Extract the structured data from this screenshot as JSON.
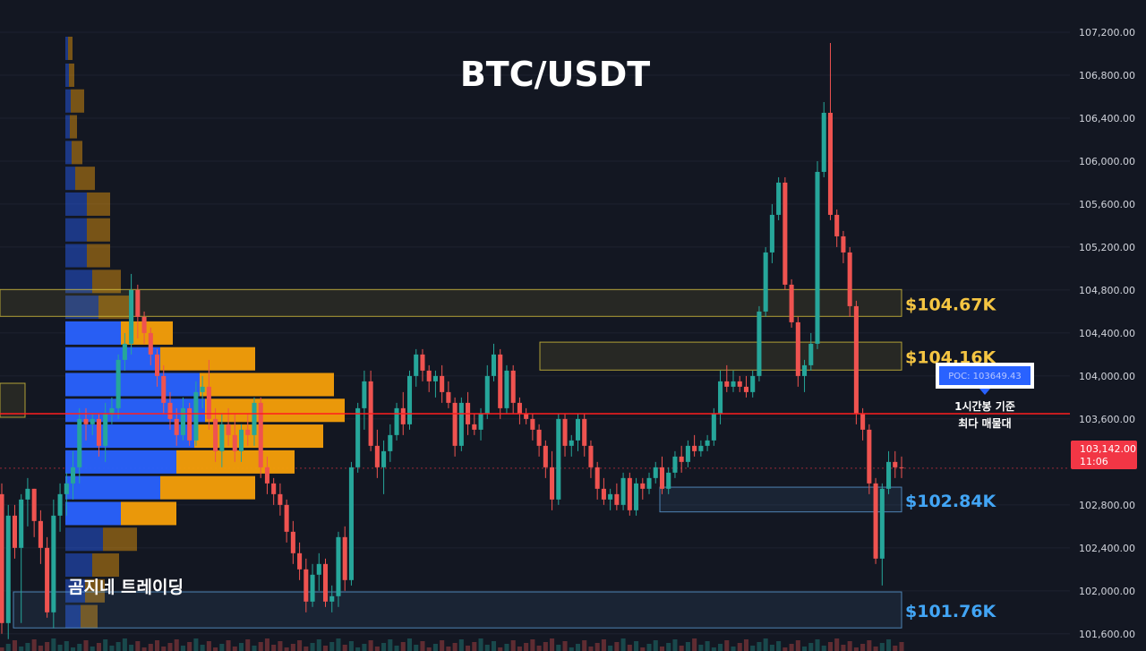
{
  "title": "BTC/USDT",
  "watermark": "곰지네 트레이딩",
  "colors": {
    "background": "#131722",
    "grid": "#1e2230",
    "bull": "#26a69a",
    "bear": "#ef5350",
    "vp_up": "#2962ff",
    "vp_down": "#f59f0a",
    "zone_yellow": "#d7c13b",
    "zone_blue": "#5b9bd5",
    "label_yellow": "#f5c542",
    "label_blue": "#42a5f5",
    "poc_line": "#ff1e1e",
    "price_tag": "#f23645"
  },
  "chart_data": {
    "type": "candlestick",
    "title": "BTC/USDT",
    "y_axis": {
      "ticks": [
        "107,200.00",
        "106,800.00",
        "106,400.00",
        "106,000.00",
        "105,600.00",
        "105,200.00",
        "104,800.00",
        "104,400.00",
        "104,000.00",
        "103,600.00",
        "102,800.00",
        "102,400.00",
        "102,000.00",
        "101,600.00"
      ],
      "range": [
        101440,
        107500
      ]
    },
    "current_price": {
      "value": "103,142.00",
      "countdown": "11:06",
      "price": 103142
    },
    "poc": {
      "label": "POC: 103649.43",
      "price": 103649.43
    },
    "poc_note": [
      "1시간봉 기준",
      "최다 매물대"
    ],
    "zones": [
      {
        "label": "$104.67K",
        "low": 104555,
        "high": 104805,
        "color": "yellow"
      },
      {
        "label": "$104.16K",
        "low": 104055,
        "high": 104315,
        "color": "yellow"
      },
      {
        "label": "$102.84K",
        "low": 102735,
        "high": 102965,
        "color": "blue"
      },
      {
        "label": "$101.76K",
        "low": 101655,
        "high": 101990,
        "color": "blue"
      }
    ],
    "candles": [
      [
        102900,
        103000,
        101600,
        101700
      ],
      [
        101700,
        102800,
        101550,
        102700
      ],
      [
        102700,
        102800,
        102300,
        102400
      ],
      [
        102400,
        102900,
        101700,
        102850
      ],
      [
        102850,
        103050,
        102600,
        102950
      ],
      [
        102950,
        102950,
        102500,
        102650
      ],
      [
        102650,
        102750,
        102250,
        102400
      ],
      [
        102400,
        102500,
        101750,
        101800
      ],
      [
        101800,
        102850,
        101650,
        102700
      ],
      [
        102700,
        103000,
        102550,
        102900
      ],
      [
        102900,
        103100,
        102700,
        103000
      ],
      [
        103000,
        103300,
        102850,
        103150
      ],
      [
        103150,
        103700,
        103000,
        103600
      ],
      [
        103600,
        103700,
        103400,
        103550
      ],
      [
        103550,
        103650,
        103450,
        103600
      ],
      [
        103600,
        103650,
        103250,
        103350
      ],
      [
        103350,
        103750,
        103200,
        103650
      ],
      [
        103650,
        103800,
        103550,
        103700
      ],
      [
        103700,
        104200,
        103600,
        104150
      ],
      [
        104150,
        104400,
        104050,
        104300
      ],
      [
        104300,
        104950,
        104200,
        104800
      ],
      [
        104800,
        104850,
        104350,
        104550
      ],
      [
        104550,
        104600,
        104300,
        104400
      ],
      [
        104400,
        104450,
        104100,
        104200
      ],
      [
        104200,
        104250,
        103900,
        104000
      ],
      [
        104000,
        104100,
        103650,
        103750
      ],
      [
        103750,
        103850,
        103500,
        103600
      ],
      [
        103600,
        103700,
        103350,
        103450
      ],
      [
        103450,
        103800,
        103400,
        103700
      ],
      [
        103700,
        103750,
        103350,
        103400
      ],
      [
        103400,
        103950,
        103350,
        103850
      ],
      [
        103850,
        104000,
        103700,
        103900
      ],
      [
        103900,
        104150,
        103500,
        103600
      ],
      [
        103600,
        103700,
        103200,
        103300
      ],
      [
        103300,
        103650,
        103150,
        103550
      ],
      [
        103550,
        103700,
        103350,
        103450
      ],
      [
        103450,
        103650,
        103200,
        103300
      ],
      [
        103300,
        103550,
        103200,
        103500
      ],
      [
        103500,
        103650,
        103350,
        103450
      ],
      [
        103450,
        103800,
        103350,
        103750
      ],
      [
        103750,
        103800,
        103050,
        103150
      ],
      [
        103150,
        103250,
        102900,
        103000
      ],
      [
        103000,
        103050,
        102800,
        102900
      ],
      [
        102900,
        103000,
        102700,
        102800
      ],
      [
        102800,
        102850,
        102450,
        102550
      ],
      [
        102550,
        102650,
        102250,
        102350
      ],
      [
        102350,
        102450,
        102100,
        102200
      ],
      [
        102200,
        102300,
        101800,
        101900
      ],
      [
        101900,
        102250,
        101850,
        102150
      ],
      [
        102150,
        102350,
        102000,
        102250
      ],
      [
        102250,
        102300,
        101850,
        101900
      ],
      [
        101900,
        102050,
        101800,
        101950
      ],
      [
        101950,
        102550,
        101850,
        102500
      ],
      [
        102500,
        102600,
        102000,
        102100
      ],
      [
        102100,
        103200,
        102050,
        103150
      ],
      [
        103150,
        103750,
        103100,
        103700
      ],
      [
        103700,
        104050,
        103500,
        103950
      ],
      [
        103950,
        104050,
        103300,
        103350
      ],
      [
        103350,
        103500,
        103050,
        103150
      ],
      [
        103150,
        103400,
        102900,
        103300
      ],
      [
        103300,
        103550,
        103200,
        103450
      ],
      [
        103450,
        103750,
        103400,
        103700
      ],
      [
        103700,
        103850,
        103450,
        103550
      ],
      [
        103550,
        104050,
        103500,
        104000
      ],
      [
        104000,
        104250,
        103900,
        104200
      ],
      [
        104200,
        104250,
        103950,
        104050
      ],
      [
        104050,
        104100,
        103850,
        103950
      ],
      [
        103950,
        104050,
        103800,
        104000
      ],
      [
        104000,
        104100,
        103750,
        103850
      ],
      [
        103850,
        103950,
        103700,
        103750
      ],
      [
        103750,
        103800,
        103250,
        103350
      ],
      [
        103350,
        103800,
        103300,
        103750
      ],
      [
        103750,
        103850,
        103450,
        103550
      ],
      [
        103550,
        103650,
        103450,
        103500
      ],
      [
        103500,
        103700,
        103400,
        103650
      ],
      [
        103650,
        104100,
        103600,
        104000
      ],
      [
        104000,
        104300,
        103950,
        104200
      ],
      [
        104200,
        104250,
        103600,
        103700
      ],
      [
        103700,
        104100,
        103650,
        104050
      ],
      [
        104050,
        104100,
        103650,
        103750
      ],
      [
        103750,
        103800,
        103550,
        103650
      ],
      [
        103650,
        103700,
        103550,
        103600
      ],
      [
        103600,
        103650,
        103400,
        103500
      ],
      [
        103500,
        103550,
        103250,
        103350
      ],
      [
        103350,
        103400,
        103050,
        103150
      ],
      [
        103150,
        103300,
        102750,
        102850
      ],
      [
        102850,
        103650,
        102800,
        103600
      ],
      [
        103600,
        103650,
        103250,
        103350
      ],
      [
        103350,
        103450,
        103250,
        103400
      ],
      [
        103400,
        103650,
        103300,
        103600
      ],
      [
        103600,
        103650,
        103250,
        103350
      ],
      [
        103350,
        103400,
        103050,
        103150
      ],
      [
        103150,
        103200,
        102850,
        102950
      ],
      [
        102950,
        103050,
        102800,
        102850
      ],
      [
        102850,
        102950,
        102750,
        102900
      ],
      [
        102900,
        103000,
        102750,
        102800
      ],
      [
        102800,
        103100,
        102750,
        103050
      ],
      [
        103050,
        103100,
        102700,
        102750
      ],
      [
        102750,
        103050,
        102700,
        103000
      ],
      [
        103000,
        103050,
        102850,
        102950
      ],
      [
        102950,
        103100,
        102900,
        103050
      ],
      [
        103050,
        103200,
        103000,
        103150
      ],
      [
        103150,
        103250,
        102900,
        102950
      ],
      [
        102950,
        103150,
        102900,
        103100
      ],
      [
        103100,
        103300,
        103050,
        103250
      ],
      [
        103250,
        103350,
        103100,
        103200
      ],
      [
        103200,
        103400,
        103150,
        103350
      ],
      [
        103350,
        103450,
        103250,
        103300
      ],
      [
        103300,
        103400,
        103250,
        103350
      ],
      [
        103350,
        103450,
        103300,
        103400
      ],
      [
        103400,
        103700,
        103350,
        103650
      ],
      [
        103650,
        104050,
        103550,
        103950
      ],
      [
        103950,
        104100,
        103850,
        103900
      ],
      [
        103900,
        104050,
        103850,
        103950
      ],
      [
        103950,
        104000,
        103850,
        103900
      ],
      [
        103900,
        104000,
        103800,
        103850
      ],
      [
        103850,
        104050,
        103800,
        104000
      ],
      [
        104000,
        104650,
        103950,
        104600
      ],
      [
        104600,
        105200,
        104550,
        105150
      ],
      [
        105150,
        105600,
        105050,
        105500
      ],
      [
        105500,
        105850,
        105450,
        105800
      ],
      [
        105800,
        105850,
        104800,
        104850
      ],
      [
        104850,
        104900,
        104450,
        104500
      ],
      [
        104500,
        104550,
        103900,
        104000
      ],
      [
        104000,
        104150,
        103850,
        104100
      ],
      [
        104100,
        104400,
        104050,
        104300
      ],
      [
        104300,
        106000,
        104250,
        105900
      ],
      [
        105900,
        106550,
        105850,
        106450
      ],
      [
        106450,
        107100,
        105450,
        105500
      ],
      [
        105500,
        105550,
        105200,
        105300
      ],
      [
        105300,
        105350,
        105050,
        105150
      ],
      [
        105150,
        105200,
        104550,
        104650
      ],
      [
        104650,
        104700,
        103550,
        103650
      ],
      [
        103650,
        103700,
        103400,
        103500
      ],
      [
        103500,
        103550,
        102900,
        103000
      ],
      [
        103000,
        103050,
        102250,
        102300
      ],
      [
        102300,
        103000,
        102050,
        102950
      ],
      [
        102950,
        103300,
        102900,
        103200
      ],
      [
        103200,
        103300,
        103050,
        103150
      ],
      [
        103150,
        103250,
        103050,
        103142
      ]
    ],
    "volume_profile": [
      {
        "price": 107050,
        "up": 3,
        "down": 5
      },
      {
        "price": 106800,
        "up": 4,
        "down": 6
      },
      {
        "price": 106560,
        "up": 6,
        "down": 15
      },
      {
        "price": 106320,
        "up": 5,
        "down": 8
      },
      {
        "price": 106080,
        "up": 7,
        "down": 12
      },
      {
        "price": 105840,
        "up": 11,
        "down": 22
      },
      {
        "price": 105600,
        "up": 24,
        "down": 26
      },
      {
        "price": 105360,
        "up": 24,
        "down": 26
      },
      {
        "price": 105120,
        "up": 24,
        "down": 26
      },
      {
        "price": 104880,
        "up": 30,
        "down": 32
      },
      {
        "price": 104640,
        "up": 37,
        "down": 34
      },
      {
        "price": 104400,
        "up": 62,
        "down": 58
      },
      {
        "price": 104160,
        "up": 106,
        "down": 106
      },
      {
        "price": 103920,
        "up": 150,
        "down": 150
      },
      {
        "price": 103680,
        "up": 156,
        "down": 156
      },
      {
        "price": 103440,
        "up": 144,
        "down": 144
      },
      {
        "price": 103200,
        "up": 124,
        "down": 132
      },
      {
        "price": 102960,
        "up": 106,
        "down": 106
      },
      {
        "price": 102720,
        "up": 62,
        "down": 62
      },
      {
        "price": 102480,
        "up": 42,
        "down": 38
      },
      {
        "price": 102240,
        "up": 30,
        "down": 30
      },
      {
        "price": 102000,
        "up": 22,
        "down": 22
      },
      {
        "price": 101760,
        "up": 17,
        "down": 19
      }
    ]
  }
}
